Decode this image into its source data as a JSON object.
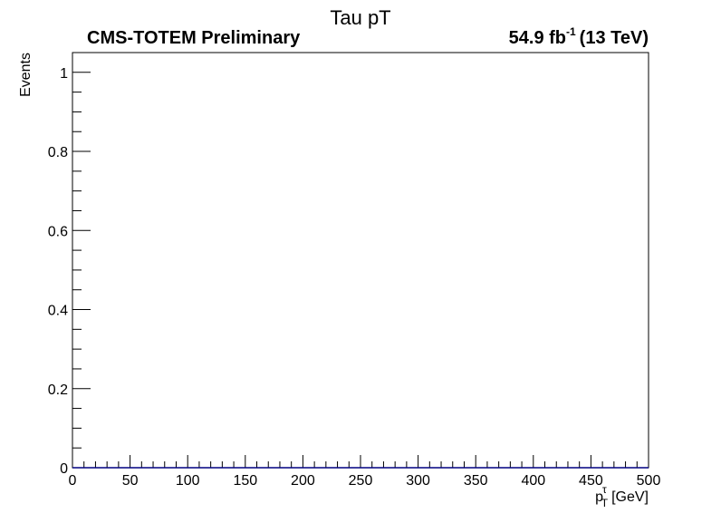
{
  "chart_data": {
    "type": "bar",
    "title": "Tau pT",
    "experiment_label": "CMS-TOTEM Preliminary",
    "lumi_value": "54.9 fb",
    "lumi_exponent": "-1",
    "energy_label": "(13 TeV)",
    "xlabel": {
      "base": "p",
      "subscript": "T",
      "superscript": "τ",
      "unit": "[GeV]"
    },
    "ylabel": "Events",
    "xlim": [
      0,
      500
    ],
    "ylim": [
      0,
      1.05
    ],
    "x_major_ticks": [
      0,
      50,
      100,
      150,
      200,
      250,
      300,
      350,
      400,
      450,
      500
    ],
    "x_tick_labels": [
      "0",
      "50",
      "100",
      "150",
      "200",
      "250",
      "300",
      "350",
      "400",
      "450",
      "500"
    ],
    "x_minor_step": 10,
    "y_major_ticks": [
      0,
      0.2,
      0.4,
      0.6,
      0.8,
      1
    ],
    "y_tick_labels": [
      "0",
      "0.2",
      "0.4",
      "0.6",
      "0.8",
      "1"
    ],
    "y_minor_step": 0.05,
    "bins": {
      "low": 0,
      "high": 500,
      "count": 50
    },
    "values": [
      0,
      0,
      0,
      0,
      0,
      0,
      0,
      0,
      0,
      0,
      0,
      0,
      0,
      0,
      0,
      0,
      0,
      0,
      0,
      0,
      0,
      0,
      0,
      0,
      0,
      0,
      0,
      0,
      0,
      0,
      0,
      0,
      0,
      0,
      0,
      0,
      0,
      0,
      0,
      0,
      0,
      0,
      0,
      0,
      0,
      0,
      0,
      0,
      0,
      0
    ],
    "line_color": "#000080",
    "grid": false,
    "legend": "none"
  }
}
